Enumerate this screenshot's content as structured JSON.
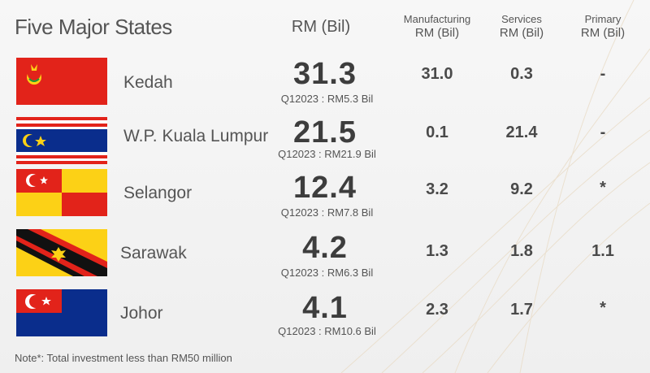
{
  "title": "Five Major States",
  "headers": {
    "total": "RM (Bil)",
    "manufacturing": "Manufacturing",
    "manufacturing_unit": "RM (Bil)",
    "services": "Services",
    "services_unit": "RM (Bil)",
    "primary": "Primary",
    "primary_unit": "RM (Bil)"
  },
  "rows": [
    {
      "state": "Kedah",
      "flag": "kedah-flag-icon",
      "total": "31.3",
      "q1": "Q12023 : RM5.3 Bil",
      "manufacturing": "31.0",
      "services": "0.3",
      "primary": "-"
    },
    {
      "state": "W.P. Kuala Lumpur",
      "flag": "kuala-lumpur-flag-icon",
      "total": "21.5",
      "q1": "Q12023 : RM21.9 Bil",
      "manufacturing": "0.1",
      "services": "21.4",
      "primary": "-"
    },
    {
      "state": "Selangor",
      "flag": "selangor-flag-icon",
      "total": "12.4",
      "q1": "Q12023 : RM7.8 Bil",
      "manufacturing": "3.2",
      "services": "9.2",
      "primary": "*"
    },
    {
      "state": "Sarawak",
      "flag": "sarawak-flag-icon",
      "total": "4.2",
      "q1": "Q12023 : RM6.3 Bil",
      "manufacturing": "1.3",
      "services": "1.8",
      "primary": "1.1"
    },
    {
      "state": "Johor",
      "flag": "johor-flag-icon",
      "total": "4.1",
      "q1": "Q12023 : RM10.6 Bil",
      "manufacturing": "2.3",
      "services": "1.7",
      "primary": "*"
    }
  ],
  "note": "Note*: Total investment less than RM50 million",
  "colors": {
    "red": "#e2231a",
    "yellow": "#fcd116",
    "blue": "#0a2d8c",
    "black": "#111111",
    "text": "#4a4a4a"
  }
}
